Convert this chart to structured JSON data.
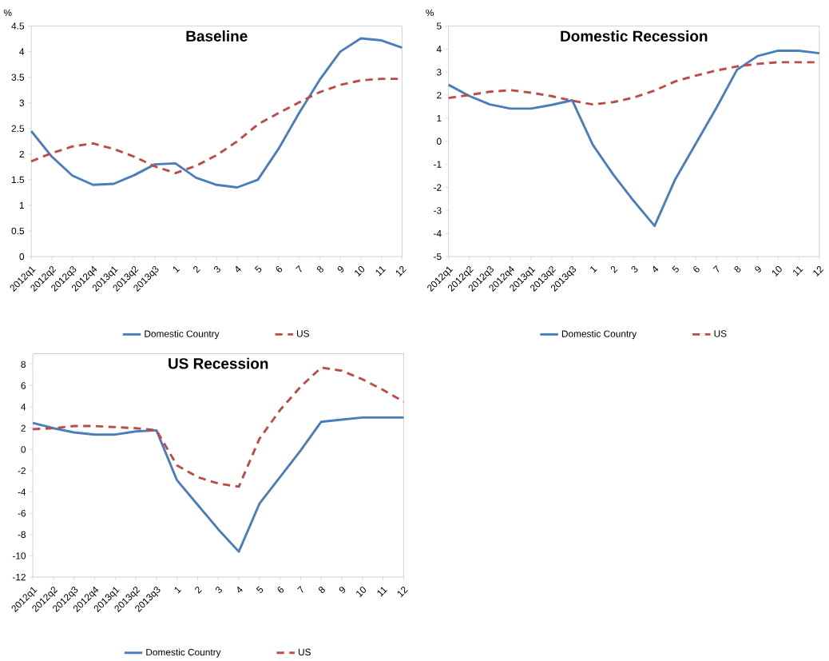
{
  "chart_data": [
    {
      "type": "line",
      "title": "Baseline",
      "ylabel": "%",
      "categories": [
        "2012q1",
        "2012q2",
        "2012q3",
        "2012q4",
        "2013q1",
        "2013q2",
        "2013q3",
        "1",
        "2",
        "3",
        "4",
        "5",
        "6",
        "7",
        "8",
        "9",
        "10",
        "11",
        "12"
      ],
      "series": [
        {
          "name": "Domestic Country",
          "color": "#4a7ebb",
          "line_style": "solid",
          "values": [
            2.45,
            1.95,
            1.58,
            1.4,
            1.42,
            1.59,
            1.8,
            1.82,
            1.54,
            1.4,
            1.35,
            1.5,
            2.1,
            2.8,
            3.45,
            4.0,
            4.26,
            4.22,
            4.08
          ]
        },
        {
          "name": "US",
          "color": "#be4b48",
          "line_style": "dashed",
          "values": [
            1.86,
            2.02,
            2.15,
            2.21,
            2.1,
            1.95,
            1.76,
            1.63,
            1.77,
            1.98,
            2.25,
            2.58,
            2.8,
            3.01,
            3.21,
            3.35,
            3.44,
            3.47,
            3.47
          ]
        }
      ],
      "ylim": [
        0,
        4.5
      ],
      "yticks": [
        0,
        0.5,
        1,
        1.5,
        2,
        2.5,
        3,
        3.5,
        4,
        4.5
      ],
      "legend": "bottom"
    },
    {
      "type": "line",
      "title": "Domestic Recession",
      "ylabel": "%",
      "categories": [
        "2012q1",
        "2012q2",
        "2012q3",
        "2012q4",
        "2013q1",
        "2013q2",
        "2013q3",
        "1",
        "2",
        "3",
        "4",
        "5",
        "6",
        "7",
        "8",
        "9",
        "10",
        "11",
        "12"
      ],
      "series": [
        {
          "name": "Domestic Country",
          "color": "#4a7ebb",
          "line_style": "solid",
          "values": [
            2.45,
            1.97,
            1.6,
            1.42,
            1.42,
            1.58,
            1.78,
            -0.15,
            -1.45,
            -2.6,
            -3.67,
            -1.65,
            -0.1,
            1.45,
            3.1,
            3.7,
            3.93,
            3.93,
            3.82
          ]
        },
        {
          "name": "US",
          "color": "#be4b48",
          "line_style": "dashed",
          "values": [
            1.88,
            2.01,
            2.15,
            2.22,
            2.11,
            1.96,
            1.76,
            1.6,
            1.7,
            1.9,
            2.2,
            2.6,
            2.85,
            3.07,
            3.25,
            3.36,
            3.43,
            3.43,
            3.43
          ]
        }
      ],
      "ylim": [
        -5,
        5
      ],
      "yticks": [
        -5,
        -4,
        -3,
        -2,
        -1,
        0,
        1,
        2,
        3,
        4,
        5
      ],
      "legend": "bottom"
    },
    {
      "type": "line",
      "title": "US Recession",
      "categories": [
        "2012q1",
        "2012q2",
        "2012q3",
        "2012q4",
        "2013q1",
        "2013q2",
        "2013q3",
        "1",
        "2",
        "3",
        "4",
        "5",
        "6",
        "7",
        "8",
        "9",
        "10",
        "11",
        "12"
      ],
      "series": [
        {
          "name": "Domestic Country",
          "color": "#4a7ebb",
          "line_style": "solid",
          "values": [
            2.5,
            2.0,
            1.6,
            1.4,
            1.4,
            1.7,
            1.8,
            -2.9,
            -5.2,
            -7.5,
            -9.6,
            -5.1,
            -2.6,
            -0.1,
            2.6,
            2.8,
            3.0,
            3.0,
            3.0
          ]
        },
        {
          "name": "US",
          "color": "#be4b48",
          "line_style": "dashed",
          "values": [
            1.9,
            2.0,
            2.2,
            2.2,
            2.1,
            2.0,
            1.8,
            -1.5,
            -2.6,
            -3.2,
            -3.5,
            1.0,
            3.7,
            5.9,
            7.7,
            7.4,
            6.6,
            5.6,
            4.5
          ]
        }
      ],
      "ylim": [
        -12,
        9
      ],
      "yticks": [
        -12,
        -10,
        -8,
        -6,
        -4,
        -2,
        0,
        2,
        4,
        6,
        8
      ],
      "legend": "bottom"
    }
  ]
}
